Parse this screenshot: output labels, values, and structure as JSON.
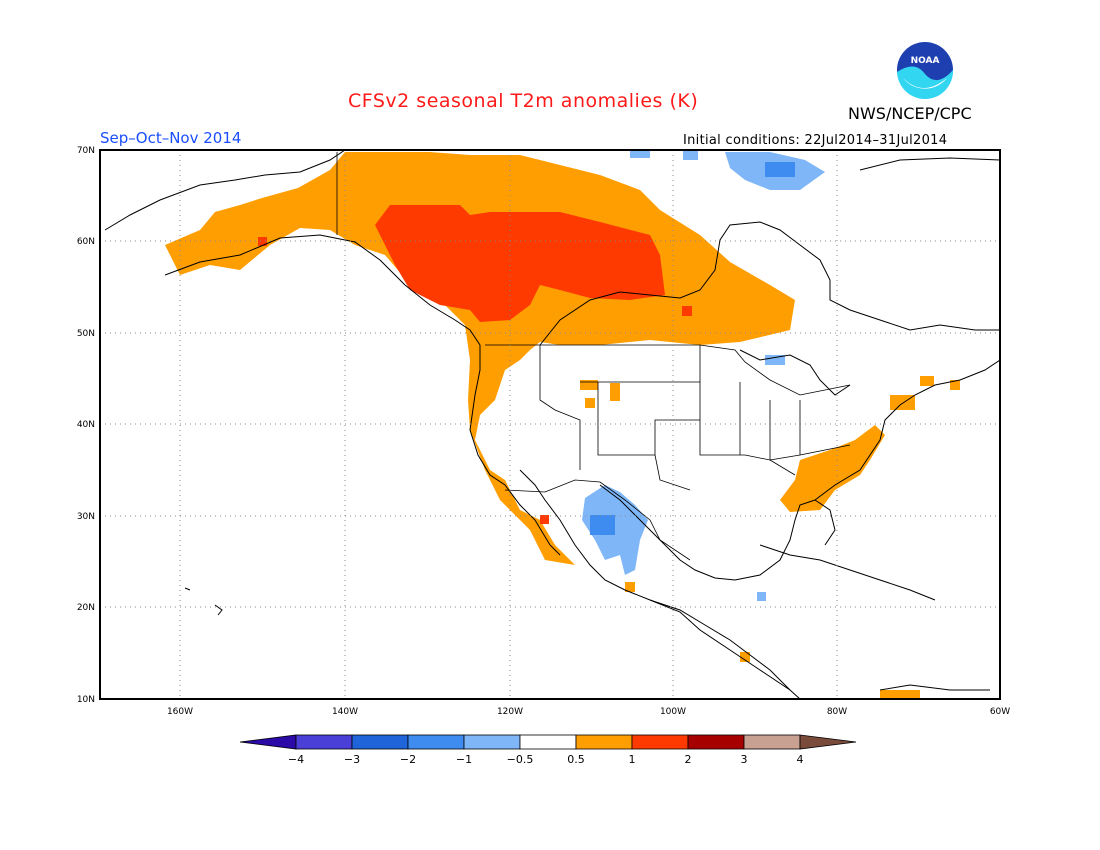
{
  "header": {
    "title": "CFSv2 seasonal T2m anomalies (K)",
    "organization": "NWS/NCEP/CPC",
    "season": "Sep–Oct–Nov 2014",
    "initial_conditions": "Initial conditions: 22Jul2014–31Jul2014",
    "logo_text": "NOAA"
  },
  "map": {
    "lon_range": [
      -172,
      -60
    ],
    "lat_range": [
      10,
      70
    ],
    "lat_ticks": [
      "70N",
      "60N",
      "50N",
      "40N",
      "30N",
      "20N",
      "10N"
    ],
    "lon_ticks": [
      "160W",
      "140W",
      "120W",
      "100W",
      "80W",
      "60W"
    ],
    "grid": "dotted"
  },
  "legend": {
    "labels": [
      "−4",
      "−3",
      "−2",
      "−1",
      "−0.5",
      "0.5",
      "1",
      "2",
      "3",
      "4"
    ],
    "colors": [
      "#2b0aa8",
      "#4a3fd6",
      "#1f64d8",
      "#3f8cf0",
      "#7fb6f7",
      "#ffffff",
      "#ff9e00",
      "#ff3a00",
      "#a60000",
      "#c9a193",
      "#7a4a3a"
    ]
  },
  "anomaly_regions": [
    {
      "name": "Western Canada / Alaska",
      "level": "0.5 to 1",
      "color": "#ff9e00"
    },
    {
      "name": "West-central Canada",
      "level": "1 to 2",
      "color": "#ff3a00"
    },
    {
      "name": "Pacific Northwest / West coast US",
      "level": "0.5 to 1",
      "color": "#ff9e00"
    },
    {
      "name": "Southeast US",
      "level": "0.5 to 1",
      "color": "#ff9e00"
    },
    {
      "name": "Northern Mexico",
      "level": "-1 to -0.5",
      "color": "#7fb6f7"
    },
    {
      "name": "Hudson Bay north",
      "level": "-1 to -0.5",
      "color": "#7fb6f7"
    }
  ]
}
